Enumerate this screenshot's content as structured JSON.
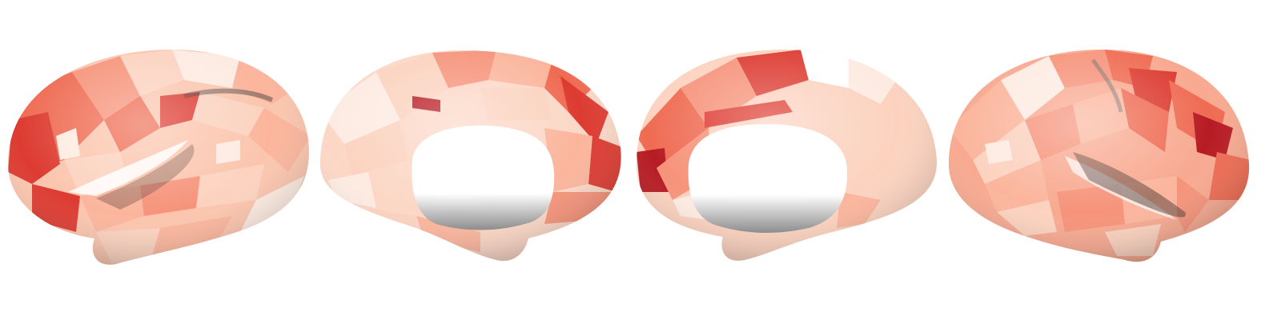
{
  "figure": {
    "description_hidden": true,
    "views": [
      {
        "id": "left-lateral",
        "hemisphere": "left",
        "view": "lateral"
      },
      {
        "id": "left-medial",
        "hemisphere": "left",
        "view": "medial"
      },
      {
        "id": "right-medial",
        "hemisphere": "right",
        "view": "medial"
      },
      {
        "id": "right-lateral",
        "hemisphere": "right",
        "view": "lateral"
      }
    ],
    "colormap": "Reds",
    "colors": {
      "background": "#ffffff",
      "c1": "#fdebe2",
      "c2": "#fcd2bf",
      "c3": "#fbb59c",
      "c4": "#f6937a",
      "c5": "#ef6b52",
      "c6": "#dd3b31",
      "c7": "#b71b23"
    }
  }
}
